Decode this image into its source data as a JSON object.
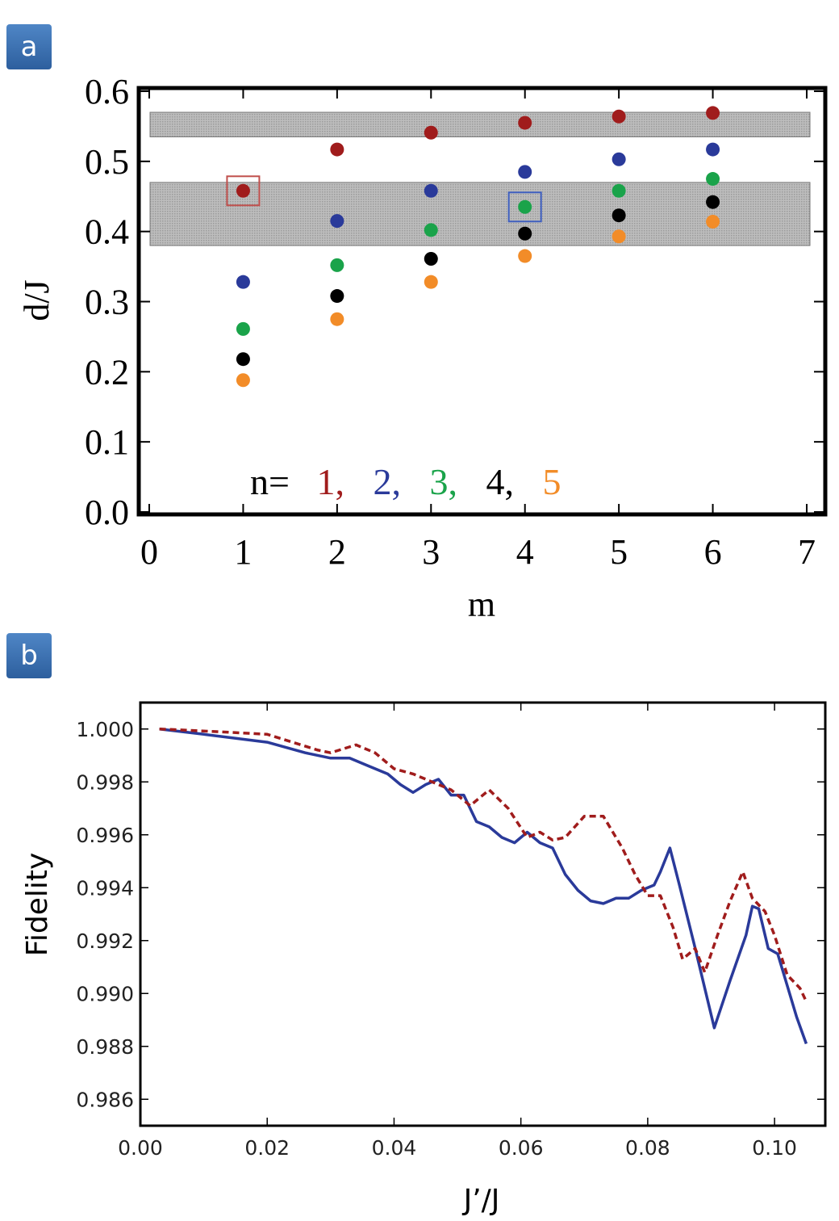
{
  "panel_labels": {
    "a": "a",
    "b": "b"
  },
  "chart_data": [
    {
      "type": "scatter",
      "title": "",
      "xlabel": "m",
      "ylabel": "d/J",
      "xlim": [
        0,
        7
      ],
      "ylim": [
        0,
        0.6
      ],
      "xticks": [
        "0",
        "1",
        "2",
        "3",
        "4",
        "5",
        "6",
        "7"
      ],
      "yticks": [
        "0.0",
        "0.1",
        "0.2",
        "0.3",
        "0.4",
        "0.5",
        "0.6"
      ],
      "bands": [
        [
          0.38,
          0.47
        ],
        [
          0.535,
          0.57
        ]
      ],
      "highlight_boxes": [
        {
          "x": 1,
          "y": 0.458,
          "color": "#c0504d"
        },
        {
          "x": 4,
          "y": 0.435,
          "color": "#3f5fbf"
        }
      ],
      "legend_prefix": "n=",
      "legend": [
        {
          "label": "1,",
          "color": "#a01c1c"
        },
        {
          "label": "2,",
          "color": "#2a3a9a"
        },
        {
          "label": "3,",
          "color": "#1aa34a"
        },
        {
          "label": "4,",
          "color": "#000000"
        },
        {
          "label": "5",
          "color": "#f28c28"
        }
      ],
      "series": [
        {
          "name": "n=1",
          "color": "#a01c1c",
          "x": [
            1,
            2,
            3,
            4,
            5,
            6
          ],
          "values": [
            0.458,
            0.517,
            0.541,
            0.555,
            0.564,
            0.569
          ]
        },
        {
          "name": "n=2",
          "color": "#2a3a9a",
          "x": [
            1,
            2,
            3,
            4,
            5,
            6
          ],
          "values": [
            0.328,
            0.415,
            0.458,
            0.485,
            0.503,
            0.517
          ]
        },
        {
          "name": "n=3",
          "color": "#1aa34a",
          "x": [
            1,
            2,
            3,
            4,
            5,
            6
          ],
          "values": [
            0.261,
            0.352,
            0.402,
            0.435,
            0.458,
            0.475
          ]
        },
        {
          "name": "n=4",
          "color": "#000000",
          "x": [
            1,
            2,
            3,
            4,
            5,
            6
          ],
          "values": [
            0.218,
            0.308,
            0.361,
            0.397,
            0.423,
            0.442
          ]
        },
        {
          "name": "n=5",
          "color": "#f28c28",
          "x": [
            1,
            2,
            3,
            4,
            5,
            6
          ],
          "values": [
            0.188,
            0.275,
            0.328,
            0.365,
            0.393,
            0.414
          ]
        }
      ]
    },
    {
      "type": "line",
      "title": "",
      "xlabel": "J’/J",
      "ylabel": "Fidelity",
      "xlim": [
        0,
        0.108
      ],
      "ylim": [
        0.985,
        1.001
      ],
      "xticks": [
        "0.00",
        "0.02",
        "0.04",
        "0.06",
        "0.08",
        "0.10"
      ],
      "yticks": [
        "0.986",
        "0.988",
        "0.990",
        "0.992",
        "0.994",
        "0.996",
        "0.998",
        "1.000"
      ],
      "series": [
        {
          "name": "solid",
          "color": "#2a3a9a",
          "dash": "",
          "x": [
            0.003,
            0.01,
            0.02,
            0.026,
            0.03,
            0.033,
            0.036,
            0.039,
            0.041,
            0.043,
            0.045,
            0.047,
            0.049,
            0.051,
            0.053,
            0.055,
            0.057,
            0.059,
            0.061,
            0.063,
            0.065,
            0.067,
            0.069,
            0.071,
            0.073,
            0.075,
            0.077,
            0.079,
            0.081,
            0.082,
            0.0835,
            0.085,
            0.0875,
            0.0905,
            0.093,
            0.0955,
            0.0965,
            0.0975,
            0.099,
            0.1005,
            0.102,
            0.1035,
            0.105
          ],
          "values": [
            1.0,
            0.9998,
            0.9995,
            0.9991,
            0.9989,
            0.9989,
            0.9986,
            0.9983,
            0.9979,
            0.9976,
            0.9979,
            0.9981,
            0.9975,
            0.9975,
            0.9965,
            0.9963,
            0.9959,
            0.9957,
            0.9961,
            0.9957,
            0.9955,
            0.9945,
            0.9939,
            0.9935,
            0.9934,
            0.9936,
            0.9936,
            0.9939,
            0.9941,
            0.9946,
            0.9955,
            0.9941,
            0.9917,
            0.9887,
            0.9905,
            0.9922,
            0.9933,
            0.9932,
            0.9917,
            0.9915,
            0.9903,
            0.9891,
            0.9881
          ]
        },
        {
          "name": "dashed",
          "color": "#a01c1c",
          "dash": "8,5",
          "x": [
            0.003,
            0.012,
            0.02,
            0.028,
            0.03,
            0.034,
            0.037,
            0.04,
            0.043,
            0.046,
            0.049,
            0.052,
            0.055,
            0.058,
            0.061,
            0.063,
            0.065,
            0.067,
            0.07,
            0.073,
            0.076,
            0.078,
            0.08,
            0.082,
            0.084,
            0.0855,
            0.0875,
            0.089,
            0.091,
            0.093,
            0.095,
            0.0965,
            0.0985,
            0.1,
            0.102,
            0.104,
            0.105
          ],
          "values": [
            1.0,
            0.9999,
            0.9998,
            0.9992,
            0.9991,
            0.9994,
            0.9991,
            0.9985,
            0.9983,
            0.998,
            0.9977,
            0.9971,
            0.9977,
            0.997,
            0.9959,
            0.9961,
            0.9958,
            0.9959,
            0.9967,
            0.9967,
            0.9955,
            0.9945,
            0.9937,
            0.9937,
            0.9925,
            0.9913,
            0.9917,
            0.9908,
            0.9922,
            0.9935,
            0.9946,
            0.9936,
            0.9931,
            0.9922,
            0.9907,
            0.9902,
            0.9897
          ]
        }
      ]
    }
  ]
}
